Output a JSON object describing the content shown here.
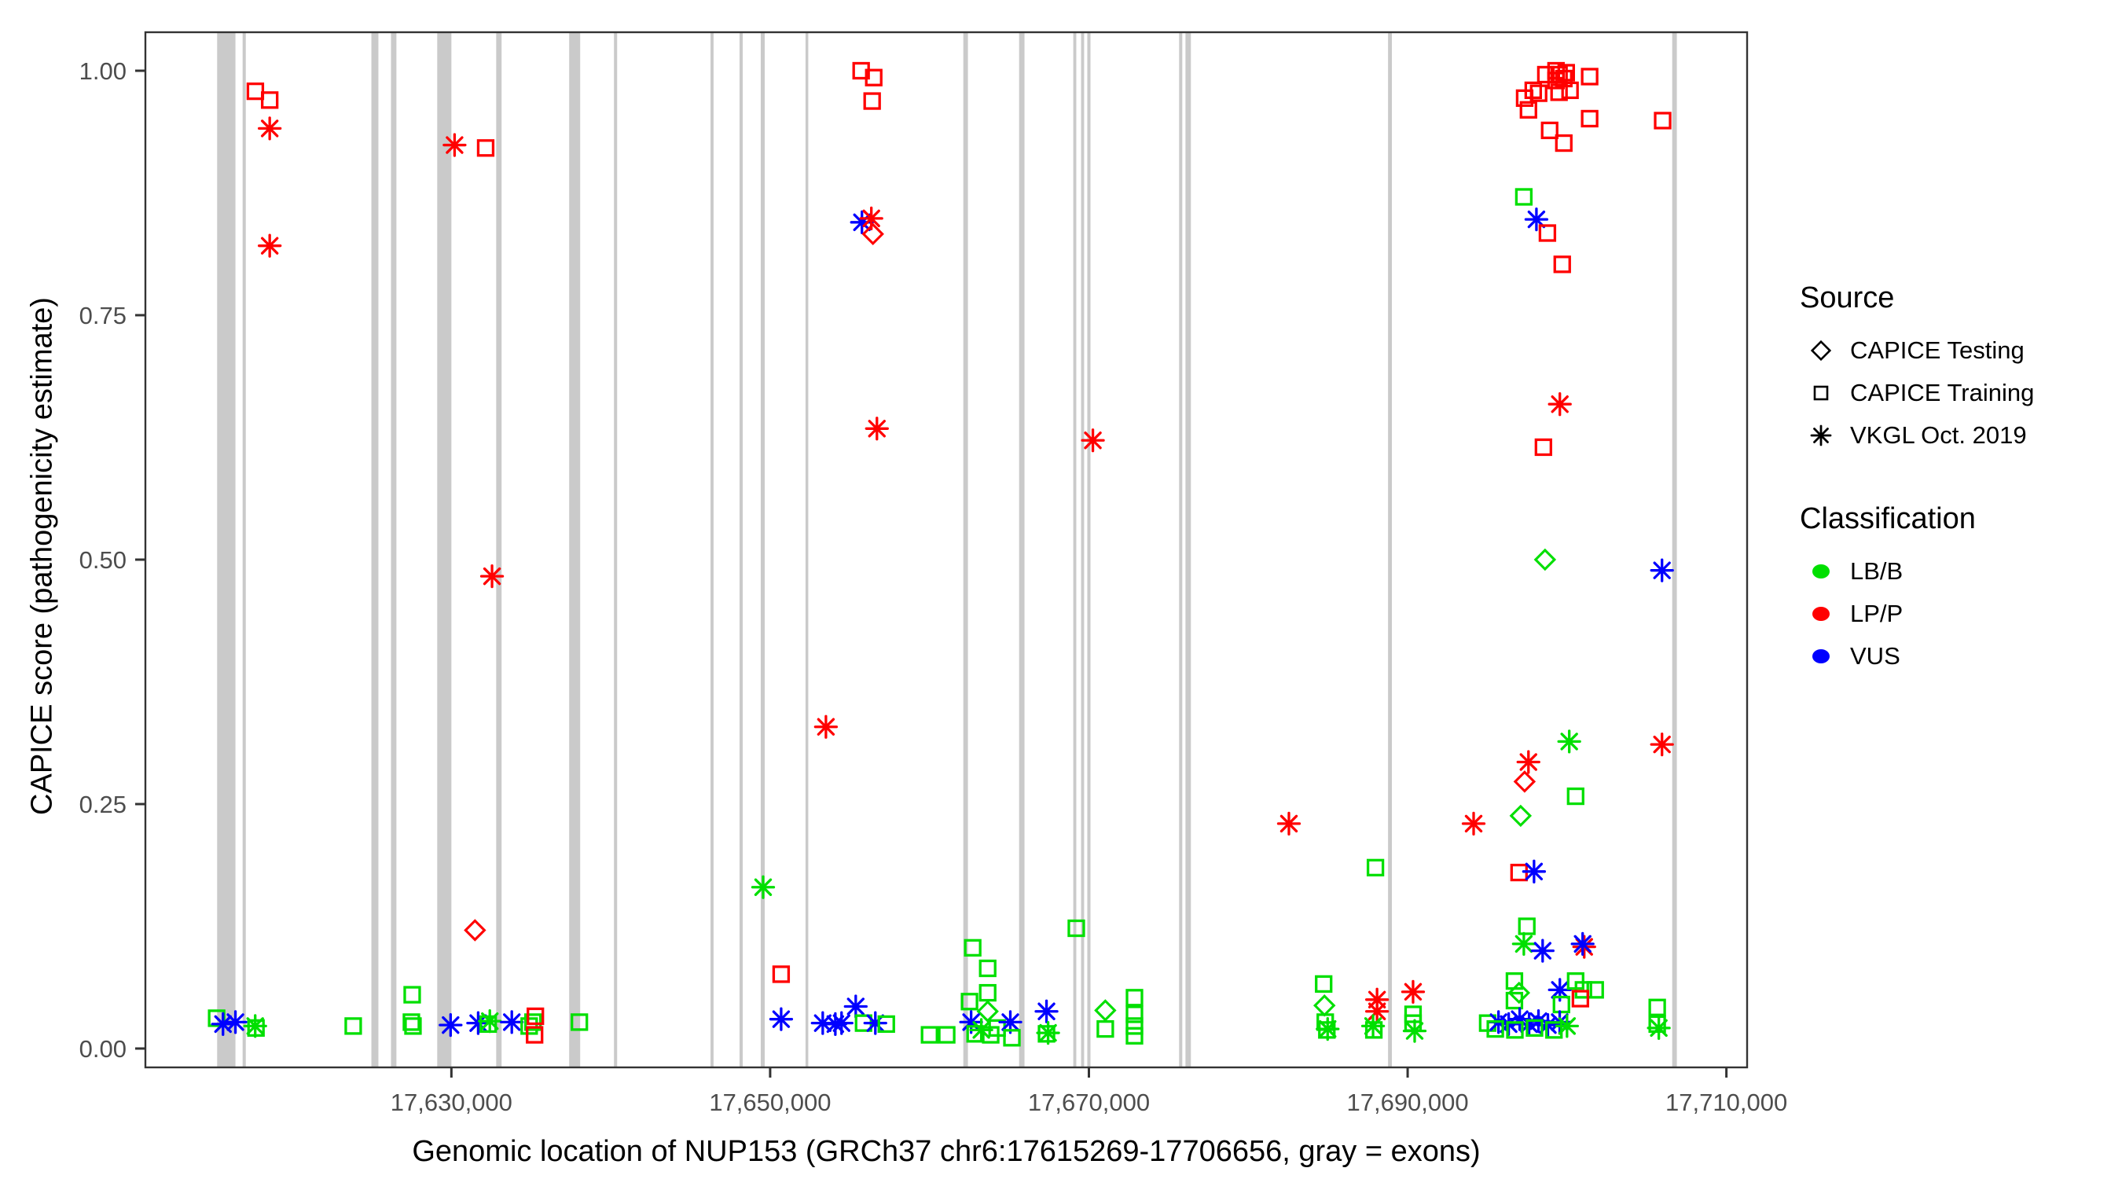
{
  "labels": {
    "y_axis": "CAPICE score (pathogenicity estimate)",
    "x_axis": "Genomic location of NUP153 (GRCh37 chr6:17615269-17706656, gray = exons)"
  },
  "legend": {
    "source": {
      "title": "Source",
      "items": [
        {
          "label": "CAPICE Testing",
          "shape": "diamond"
        },
        {
          "label": "CAPICE Training",
          "shape": "square"
        },
        {
          "label": "VKGL Oct. 2019",
          "shape": "asterisk"
        }
      ]
    },
    "classification": {
      "title": "Classification",
      "items": [
        {
          "label": "LB/B",
          "color": "#00DF00"
        },
        {
          "label": "LP/P",
          "color": "#FF0000"
        },
        {
          "label": "VUS",
          "color": "#0000FF"
        }
      ]
    }
  },
  "chart_data": {
    "type": "scatter",
    "title": "",
    "xlabel": "Genomic location of NUP153 (GRCh37 chr6:17615269-17706656, gray = exons)",
    "ylabel": "CAPICE score (pathogenicity estimate)",
    "xlim": [
      17610800,
      17711300
    ],
    "ylim": [
      -0.02,
      1.04
    ],
    "x_ticks": [
      17630000,
      17650000,
      17670000,
      17690000,
      17710000
    ],
    "x_tick_labels": [
      "17,630,000",
      "17,650,000",
      "17,670,000",
      "17,690,000",
      "17,710,000"
    ],
    "y_ticks": [
      0.0,
      0.25,
      0.5,
      0.75,
      1.0
    ],
    "y_tick_labels": [
      "0.00",
      "0.25",
      "0.50",
      "0.75",
      "1.00"
    ],
    "grid": false,
    "legend_position": "right",
    "colors": {
      "LB/B": "#00DF00",
      "LP/P": "#FF0000",
      "VUS": "#0000FF"
    },
    "shape_by_source": {
      "CAPICE Testing": "diamond",
      "CAPICE Training": "square",
      "VKGL Oct. 2019": "asterisk"
    },
    "exon_color": "#CACACA",
    "exons": [
      [
        17615300,
        17616450
      ],
      [
        17616900,
        17617100
      ],
      [
        17624980,
        17625420
      ],
      [
        17626210,
        17626550
      ],
      [
        17629110,
        17630000
      ],
      [
        17632810,
        17633150
      ],
      [
        17637390,
        17638080
      ],
      [
        17640200,
        17640400
      ],
      [
        17646260,
        17646450
      ],
      [
        17648080,
        17648280
      ],
      [
        17649410,
        17649660
      ],
      [
        17652220,
        17652360
      ],
      [
        17662120,
        17662410
      ],
      [
        17665620,
        17665960
      ],
      [
        17669020,
        17669210
      ],
      [
        17669510,
        17669700
      ],
      [
        17669900,
        17670100
      ],
      [
        17675660,
        17675860
      ],
      [
        17676060,
        17676400
      ],
      [
        17688770,
        17689010
      ],
      [
        17706600,
        17706890
      ]
    ],
    "points_format": [
      "genomic_position",
      "capice_score",
      "classification",
      "source"
    ],
    "points": [
      [
        17617700,
        0.979,
        "LP/P",
        "CAPICE Training"
      ],
      [
        17618600,
        0.97,
        "LP/P",
        "CAPICE Training"
      ],
      [
        17618600,
        0.941,
        "LP/P",
        "VKGL Oct. 2019"
      ],
      [
        17618600,
        0.821,
        "LP/P",
        "VKGL Oct. 2019"
      ],
      [
        17630200,
        0.924,
        "LP/P",
        "VKGL Oct. 2019"
      ],
      [
        17632150,
        0.921,
        "LP/P",
        "CAPICE Training"
      ],
      [
        17632550,
        0.483,
        "LP/P",
        "VKGL Oct. 2019"
      ],
      [
        17631480,
        0.121,
        "LP/P",
        "CAPICE Testing"
      ],
      [
        17615270,
        0.031,
        "LB/B",
        "CAPICE Training"
      ],
      [
        17615670,
        0.025,
        "VUS",
        "VKGL Oct. 2019"
      ],
      [
        17616450,
        0.027,
        "VUS",
        "VKGL Oct. 2019"
      ],
      [
        17617690,
        0.023,
        "LB/B",
        "VKGL Oct. 2019"
      ],
      [
        17617740,
        0.021,
        "LB/B",
        "CAPICE Training"
      ],
      [
        17623840,
        0.023,
        "LB/B",
        "CAPICE Training"
      ],
      [
        17627540,
        0.055,
        "LB/B",
        "CAPICE Training"
      ],
      [
        17627490,
        0.027,
        "LB/B",
        "CAPICE Training"
      ],
      [
        17627590,
        0.023,
        "LB/B",
        "CAPICE Training"
      ],
      [
        17629950,
        0.024,
        "VUS",
        "VKGL Oct. 2019"
      ],
      [
        17631680,
        0.026,
        "VUS",
        "VKGL Oct. 2019"
      ],
      [
        17632310,
        0.025,
        "LB/B",
        "CAPICE Training"
      ],
      [
        17632410,
        0.028,
        "LB/B",
        "VKGL Oct. 2019"
      ],
      [
        17633790,
        0.027,
        "VUS",
        "VKGL Oct. 2019"
      ],
      [
        17634880,
        0.023,
        "LB/B",
        "CAPICE Training"
      ],
      [
        17635120,
        0.027,
        "LB/B",
        "CAPICE Training"
      ],
      [
        17635270,
        0.033,
        "LP/P",
        "CAPICE Training"
      ],
      [
        17635220,
        0.014,
        "LP/P",
        "CAPICE Training"
      ],
      [
        17638030,
        0.027,
        "LB/B",
        "CAPICE Training"
      ],
      [
        17649560,
        0.165,
        "LB/B",
        "VKGL Oct. 2019"
      ],
      [
        17650690,
        0.076,
        "LP/P",
        "CAPICE Training"
      ],
      [
        17650690,
        0.03,
        "VUS",
        "VKGL Oct. 2019"
      ],
      [
        17653500,
        0.329,
        "LP/P",
        "VKGL Oct. 2019"
      ],
      [
        17653300,
        0.026,
        "VUS",
        "VKGL Oct. 2019"
      ],
      [
        17654090,
        0.025,
        "VUS",
        "VKGL Oct. 2019"
      ],
      [
        17654480,
        0.026,
        "VUS",
        "VKGL Oct. 2019"
      ],
      [
        17655370,
        0.043,
        "VUS",
        "VKGL Oct. 2019"
      ],
      [
        17655860,
        0.026,
        "LB/B",
        "CAPICE Training"
      ],
      [
        17656600,
        0.026,
        "VUS",
        "VKGL Oct. 2019"
      ],
      [
        17657290,
        0.025,
        "LB/B",
        "CAPICE Training"
      ],
      [
        17655710,
        1.0,
        "LP/P",
        "CAPICE Training"
      ],
      [
        17656500,
        0.993,
        "LP/P",
        "CAPICE Training"
      ],
      [
        17656400,
        0.969,
        "LP/P",
        "CAPICE Training"
      ],
      [
        17655760,
        0.845,
        "VUS",
        "VKGL Oct. 2019"
      ],
      [
        17656350,
        0.849,
        "LP/P",
        "VKGL Oct. 2019"
      ],
      [
        17656450,
        0.833,
        "LP/P",
        "CAPICE Testing"
      ],
      [
        17656700,
        0.634,
        "LP/P",
        "VKGL Oct. 2019"
      ],
      [
        17660000,
        0.014,
        "LB/B",
        "CAPICE Training"
      ],
      [
        17661080,
        0.014,
        "LB/B",
        "CAPICE Training"
      ],
      [
        17662710,
        0.103,
        "LB/B",
        "CAPICE Training"
      ],
      [
        17663650,
        0.082,
        "LB/B",
        "CAPICE Training"
      ],
      [
        17663650,
        0.057,
        "LB/B",
        "CAPICE Training"
      ],
      [
        17662510,
        0.048,
        "LB/B",
        "CAPICE Training"
      ],
      [
        17663650,
        0.038,
        "LB/B",
        "CAPICE Testing"
      ],
      [
        17662610,
        0.027,
        "VUS",
        "VKGL Oct. 2019"
      ],
      [
        17663250,
        0.019,
        "LB/B",
        "VKGL Oct. 2019"
      ],
      [
        17662860,
        0.015,
        "LB/B",
        "CAPICE Training"
      ],
      [
        17663840,
        0.014,
        "LB/B",
        "CAPICE Training"
      ],
      [
        17664240,
        0.021,
        "LB/B",
        "CAPICE Training"
      ],
      [
        17665070,
        0.027,
        "VUS",
        "VKGL Oct. 2019"
      ],
      [
        17665170,
        0.011,
        "LB/B",
        "CAPICE Training"
      ],
      [
        17667340,
        0.038,
        "VUS",
        "VKGL Oct. 2019"
      ],
      [
        17667340,
        0.015,
        "LB/B",
        "CAPICE Training"
      ],
      [
        17667440,
        0.016,
        "LB/B",
        "VKGL Oct. 2019"
      ],
      [
        17669210,
        0.123,
        "LB/B",
        "CAPICE Training"
      ],
      [
        17670250,
        0.622,
        "LP/P",
        "VKGL Oct. 2019"
      ],
      [
        17671030,
        0.039,
        "LB/B",
        "CAPICE Testing"
      ],
      [
        17671030,
        0.02,
        "LB/B",
        "CAPICE Training"
      ],
      [
        17672860,
        0.052,
        "LB/B",
        "CAPICE Training"
      ],
      [
        17672860,
        0.035,
        "LB/B",
        "CAPICE Training"
      ],
      [
        17672860,
        0.023,
        "LB/B",
        "CAPICE Training"
      ],
      [
        17672860,
        0.013,
        "LB/B",
        "CAPICE Training"
      ],
      [
        17682550,
        0.23,
        "LP/P",
        "VKGL Oct. 2019"
      ],
      [
        17684730,
        0.066,
        "LB/B",
        "CAPICE Training"
      ],
      [
        17684780,
        0.044,
        "LB/B",
        "CAPICE Testing"
      ],
      [
        17684830,
        0.027,
        "LB/B",
        "CAPICE Training"
      ],
      [
        17684930,
        0.019,
        "LB/B",
        "CAPICE Training"
      ],
      [
        17684980,
        0.02,
        "LB/B",
        "VKGL Oct. 2019"
      ],
      [
        17687980,
        0.185,
        "LB/B",
        "CAPICE Training"
      ],
      [
        17688080,
        0.05,
        "LP/P",
        "VKGL Oct. 2019"
      ],
      [
        17688080,
        0.038,
        "LP/P",
        "VKGL Oct. 2019"
      ],
      [
        17687830,
        0.023,
        "LB/B",
        "VKGL Oct. 2019"
      ],
      [
        17687880,
        0.019,
        "LB/B",
        "CAPICE Training"
      ],
      [
        17690340,
        0.058,
        "LP/P",
        "VKGL Oct. 2019"
      ],
      [
        17690340,
        0.035,
        "LB/B",
        "CAPICE Training"
      ],
      [
        17690340,
        0.026,
        "LB/B",
        "CAPICE Training"
      ],
      [
        17690440,
        0.018,
        "LB/B",
        "VKGL Oct. 2019"
      ],
      [
        17694140,
        0.23,
        "LP/P",
        "VKGL Oct. 2019"
      ],
      [
        17698670,
        0.996,
        "LP/P",
        "CAPICE Training"
      ],
      [
        17699310,
        1.0,
        "LP/P",
        "CAPICE Training"
      ],
      [
        17699500,
        0.996,
        "LP/P",
        "CAPICE Training"
      ],
      [
        17699800,
        0.992,
        "LP/P",
        "CAPICE Training"
      ],
      [
        17699950,
        0.998,
        "LP/P",
        "CAPICE Training"
      ],
      [
        17699310,
        0.99,
        "LP/P",
        "CAPICE Training"
      ],
      [
        17697880,
        0.98,
        "LP/P",
        "CAPICE Training"
      ],
      [
        17698220,
        0.977,
        "LP/P",
        "CAPICE Training"
      ],
      [
        17699500,
        0.978,
        "LP/P",
        "CAPICE Training"
      ],
      [
        17700190,
        0.98,
        "LP/P",
        "CAPICE Training"
      ],
      [
        17697340,
        0.972,
        "LP/P",
        "CAPICE Training"
      ],
      [
        17697580,
        0.96,
        "LP/P",
        "CAPICE Training"
      ],
      [
        17701420,
        0.994,
        "LP/P",
        "CAPICE Training"
      ],
      [
        17701420,
        0.951,
        "LP/P",
        "CAPICE Training"
      ],
      [
        17698910,
        0.939,
        "LP/P",
        "CAPICE Training"
      ],
      [
        17699800,
        0.926,
        "LP/P",
        "CAPICE Training"
      ],
      [
        17706000,
        0.949,
        "LP/P",
        "CAPICE Training"
      ],
      [
        17697290,
        0.871,
        "LB/B",
        "CAPICE Training"
      ],
      [
        17698080,
        0.848,
        "VUS",
        "VKGL Oct. 2019"
      ],
      [
        17698770,
        0.834,
        "LP/P",
        "CAPICE Training"
      ],
      [
        17699700,
        0.802,
        "LP/P",
        "CAPICE Training"
      ],
      [
        17699550,
        0.659,
        "LP/P",
        "VKGL Oct. 2019"
      ],
      [
        17698520,
        0.615,
        "LP/P",
        "CAPICE Training"
      ],
      [
        17698620,
        0.5,
        "LB/B",
        "CAPICE Testing"
      ],
      [
        17705960,
        0.489,
        "VUS",
        "VKGL Oct. 2019"
      ],
      [
        17700140,
        0.314,
        "LB/B",
        "VKGL Oct. 2019"
      ],
      [
        17705960,
        0.311,
        "LP/P",
        "VKGL Oct. 2019"
      ],
      [
        17697580,
        0.293,
        "LP/P",
        "VKGL Oct. 2019"
      ],
      [
        17697340,
        0.273,
        "LP/P",
        "CAPICE Testing"
      ],
      [
        17700540,
        0.258,
        "LB/B",
        "CAPICE Training"
      ],
      [
        17697090,
        0.238,
        "LB/B",
        "CAPICE Testing"
      ],
      [
        17696990,
        0.18,
        "LP/P",
        "CAPICE Training"
      ],
      [
        17697930,
        0.181,
        "VUS",
        "VKGL Oct. 2019"
      ],
      [
        17697480,
        0.125,
        "LB/B",
        "CAPICE Training"
      ],
      [
        17697290,
        0.107,
        "LB/B",
        "VKGL Oct. 2019"
      ],
      [
        17698470,
        0.1,
        "VUS",
        "VKGL Oct. 2019"
      ],
      [
        17701080,
        0.104,
        "LP/P",
        "VKGL Oct. 2019"
      ],
      [
        17700980,
        0.107,
        "VUS",
        "VKGL Oct. 2019"
      ],
      [
        17699550,
        0.06,
        "VUS",
        "VKGL Oct. 2019"
      ],
      [
        17696700,
        0.069,
        "LB/B",
        "CAPICE Training"
      ],
      [
        17696990,
        0.057,
        "LB/B",
        "CAPICE Testing"
      ],
      [
        17696700,
        0.049,
        "LB/B",
        "CAPICE Training"
      ],
      [
        17700540,
        0.069,
        "LB/B",
        "CAPICE Training"
      ],
      [
        17701030,
        0.06,
        "LB/B",
        "CAPICE Training"
      ],
      [
        17701770,
        0.06,
        "LB/B",
        "CAPICE Training"
      ],
      [
        17700840,
        0.051,
        "LP/P",
        "CAPICE Training"
      ],
      [
        17699650,
        0.045,
        "LB/B",
        "CAPICE Training"
      ],
      [
        17695020,
        0.026,
        "LB/B",
        "CAPICE Training"
      ],
      [
        17695700,
        0.027,
        "VUS",
        "VKGL Oct. 2019"
      ],
      [
        17696340,
        0.025,
        "VUS",
        "VKGL Oct. 2019"
      ],
      [
        17697030,
        0.03,
        "VUS",
        "VKGL Oct. 2019"
      ],
      [
        17697620,
        0.025,
        "VUS",
        "VKGL Oct. 2019"
      ],
      [
        17698210,
        0.028,
        "VUS",
        "VKGL Oct. 2019"
      ],
      [
        17698800,
        0.024,
        "VUS",
        "VKGL Oct. 2019"
      ],
      [
        17699540,
        0.027,
        "VUS",
        "VKGL Oct. 2019"
      ],
      [
        17695500,
        0.02,
        "LB/B",
        "CAPICE Training"
      ],
      [
        17696730,
        0.019,
        "LB/B",
        "CAPICE Training"
      ],
      [
        17697960,
        0.021,
        "LB/B",
        "CAPICE Training"
      ],
      [
        17699180,
        0.019,
        "LB/B",
        "CAPICE Training"
      ],
      [
        17700000,
        0.023,
        "LB/B",
        "VKGL Oct. 2019"
      ],
      [
        17705660,
        0.042,
        "LB/B",
        "CAPICE Training"
      ],
      [
        17705660,
        0.025,
        "LB/B",
        "CAPICE Training"
      ],
      [
        17705760,
        0.021,
        "LB/B",
        "VKGL Oct. 2019"
      ]
    ]
  }
}
